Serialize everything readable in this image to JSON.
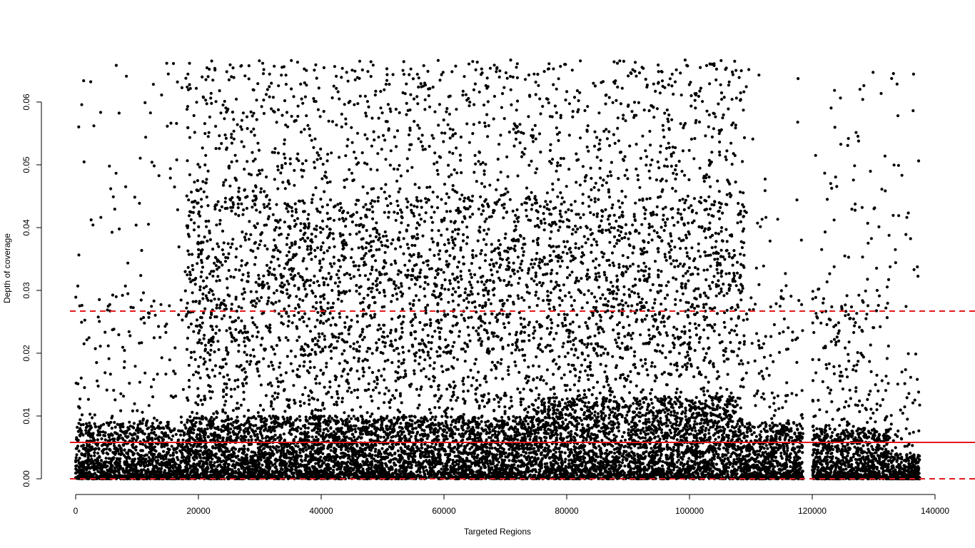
{
  "chart_data": {
    "type": "scatter",
    "title": "",
    "xlabel": "Targeted Regions",
    "ylabel": "Depth of coverage",
    "xlim": [
      0,
      140000
    ],
    "ylim": [
      0,
      0.0667
    ],
    "x_ticks": [
      0,
      20000,
      40000,
      60000,
      80000,
      100000,
      120000,
      140000
    ],
    "x_tick_labels": [
      "0",
      "20000",
      "40000",
      "60000",
      "80000",
      "100000",
      "120000",
      "140000"
    ],
    "y_ticks": [
      0.0,
      0.01,
      0.02,
      0.03,
      0.04,
      0.05,
      0.06
    ],
    "y_tick_labels": [
      "0.00",
      "0.01",
      "0.02",
      "0.03",
      "0.04",
      "0.05",
      "0.06"
    ],
    "grid": false,
    "reference_lines": [
      {
        "kind": "solid",
        "y": 0.0058,
        "color": "#e41a1c"
      },
      {
        "kind": "dashed",
        "y": 0.0267,
        "color": "#e41a1c"
      },
      {
        "kind": "dashed",
        "y": 0.0,
        "color": "#e41a1c"
      }
    ],
    "point_color": "#000000",
    "n_points_depicted": 137500,
    "density_profile": [
      {
        "x_range": [
          0,
          18000
        ],
        "note": "sparse upper points, dense near zero"
      },
      {
        "x_range": [
          18000,
          109000
        ],
        "note": "dense across full range, most dense below 0.02"
      },
      {
        "x_range": [
          109000,
          118500
        ],
        "note": "dense below 0.01, sparse above"
      },
      {
        "x_range": [
          118500,
          132500
        ],
        "note": "moderate density, sparse upper"
      },
      {
        "x_range": [
          132500,
          137500
        ],
        "note": "very dense near zero, sparse upper"
      }
    ]
  }
}
